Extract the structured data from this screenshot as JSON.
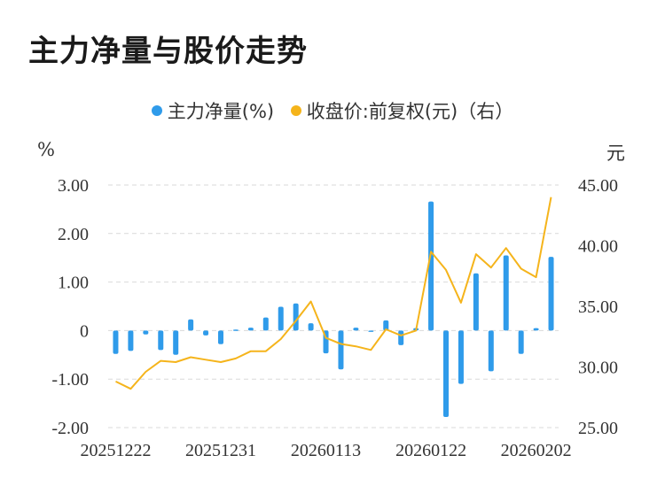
{
  "title": "主力净量与股价走势",
  "legend": {
    "series1": "主力净量(%)",
    "series2": "收盘价:前复权(元)（右）"
  },
  "units": {
    "left": "%",
    "right": "元"
  },
  "colors": {
    "bar": "#2f9bea",
    "line": "#f5b41b",
    "grid": "#d9d9d9"
  },
  "chart_data": {
    "type": "bar+line",
    "title": "主力净量与股价走势",
    "x_tick_labels": [
      "20251222",
      "20251231",
      "20260113",
      "20260122",
      "20260202"
    ],
    "left_axis": {
      "unit": "%",
      "ylim": [
        -2.0,
        3.0
      ],
      "ticks": [
        "3.00",
        "2.00",
        "1.00",
        "0",
        "-1.00",
        "-2.00"
      ],
      "tick_values": [
        3,
        2,
        1,
        0,
        -1,
        -2
      ]
    },
    "right_axis": {
      "unit": "元",
      "ylim": [
        25.0,
        45.0
      ],
      "ticks": [
        "45.00",
        "40.00",
        "35.00",
        "30.00",
        "25.00"
      ],
      "tick_values": [
        45,
        40,
        35,
        30,
        25
      ]
    },
    "grid": true,
    "series": [
      {
        "name": "主力净量(%)",
        "type": "bar",
        "axis": "left",
        "values": [
          -0.48,
          -0.42,
          -0.08,
          -0.4,
          -0.5,
          0.23,
          -0.1,
          -0.28,
          0.02,
          0.06,
          0.27,
          0.49,
          0.56,
          0.15,
          -0.47,
          -0.8,
          0.06,
          -0.02,
          0.21,
          -0.3,
          0.05,
          2.66,
          -1.78,
          -1.1,
          1.18,
          -0.84,
          1.55,
          -0.48,
          0.05,
          1.52
        ]
      },
      {
        "name": "收盘价:前复权(元)（右）",
        "type": "line",
        "axis": "right",
        "values": [
          28.8,
          28.2,
          29.6,
          30.5,
          30.4,
          30.8,
          30.6,
          30.4,
          30.7,
          31.3,
          31.3,
          32.3,
          33.8,
          35.4,
          32.4,
          31.9,
          31.7,
          31.4,
          33.1,
          32.6,
          33.0,
          39.5,
          38.0,
          35.3,
          39.3,
          38.2,
          39.8,
          38.1,
          37.4,
          44.0
        ]
      }
    ]
  }
}
